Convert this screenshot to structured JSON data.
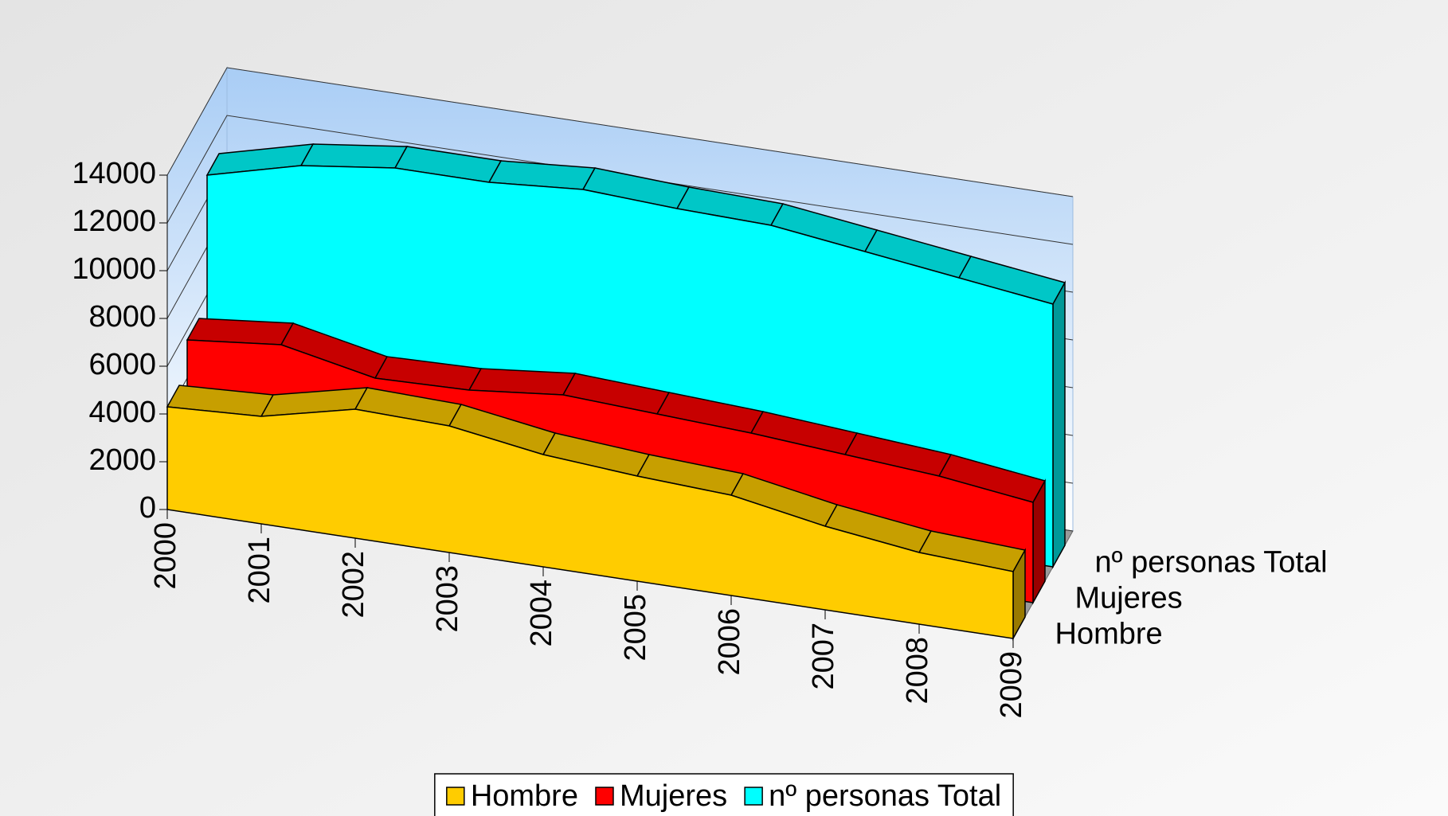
{
  "chart_data": {
    "type": "area",
    "categories": [
      "2000",
      "2001",
      "2002",
      "2003",
      "2004",
      "2005",
      "2006",
      "2007",
      "2008",
      "2009"
    ],
    "series": [
      {
        "name": "Hombre",
        "color": "#ffcc00",
        "values": [
          4300,
          4500,
          5400,
          5300,
          4700,
          4400,
          4200,
          3500,
          3000,
          2800
        ]
      },
      {
        "name": "Mujeres",
        "color": "#ff0000",
        "values": [
          5600,
          6000,
          5200,
          5300,
          5700,
          5500,
          5300,
          5000,
          4700,
          4200
        ]
      },
      {
        "name": "nº personas Total",
        "color": "#00ffff",
        "values": [
          11000,
          12000,
          12500,
          12500,
          12800,
          12600,
          12500,
          12000,
          11500,
          11000
        ]
      }
    ],
    "ylim": [
      0,
      14000
    ],
    "yticks": [
      0,
      2000,
      4000,
      6000,
      8000,
      10000,
      12000,
      14000
    ],
    "grid": true,
    "legend": "bottom"
  }
}
